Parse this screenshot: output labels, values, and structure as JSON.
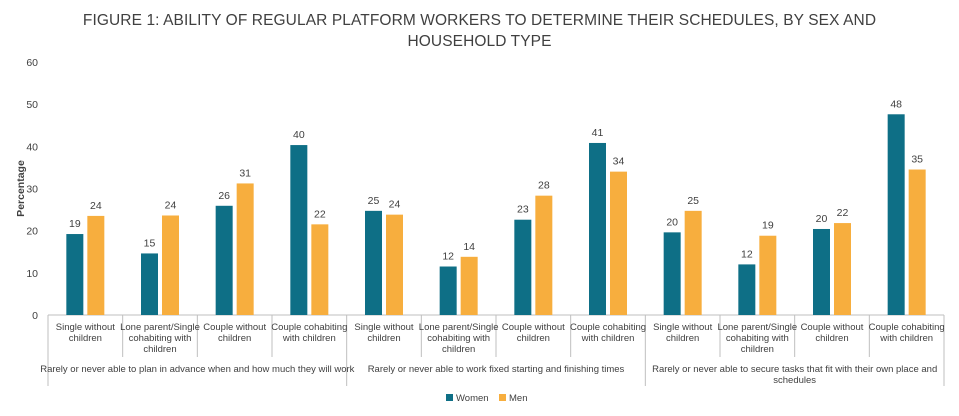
{
  "chart_data": {
    "type": "bar",
    "title_lines": [
      "FIGURE 1: ABILITY OF REGULAR PLATFORM WORKERS TO DETERMINE THEIR SCHEDULES, BY SEX AND",
      "HOUSEHOLD TYPE"
    ],
    "ylabel": "Percentage",
    "ylim": [
      0,
      60
    ],
    "yticks": [
      0,
      10,
      20,
      30,
      40,
      50,
      60
    ],
    "grid": false,
    "legend_position": "bottom",
    "groups": [
      {
        "label": "Rarely or never able to plan in advance when and how much they will work",
        "categories": [
          [
            "Single without",
            "children"
          ],
          [
            "Lone parent/Single",
            "cohabiting with",
            "children"
          ],
          [
            "Couple without",
            "children"
          ],
          [
            "Couple cohabiting",
            "with children"
          ]
        ]
      },
      {
        "label": "Rarely or never able to work fixed starting and finishing times",
        "categories": [
          [
            "Single without",
            "children"
          ],
          [
            "Lone parent/Single",
            "cohabiting with",
            "children"
          ],
          [
            "Couple without",
            "children"
          ],
          [
            "Couple cohabiting",
            "with children"
          ]
        ]
      },
      {
        "label": [
          "Rarely or never able to secure tasks that fit with their own place and",
          "schedules"
        ],
        "categories": [
          [
            "Single without",
            "children"
          ],
          [
            "Lone parent/Single",
            "cohabiting with",
            "children"
          ],
          [
            "Couple without",
            "children"
          ],
          [
            "Couple cohabiting",
            "with children"
          ]
        ]
      }
    ],
    "series": [
      {
        "name": "Women",
        "color": "#0e6f86",
        "values": [
          19,
          15,
          26,
          40,
          25,
          12,
          23,
          41,
          20,
          12,
          20,
          48
        ],
        "exact": [
          19.2,
          14.6,
          25.9,
          40.3,
          24.7,
          11.5,
          22.6,
          40.8,
          19.6,
          12.0,
          20.4,
          47.6
        ]
      },
      {
        "name": "Men",
        "color": "#f7ae3e",
        "values": [
          24,
          24,
          31,
          22,
          24,
          14,
          28,
          34,
          25,
          19,
          22,
          35
        ],
        "exact": [
          23.5,
          23.6,
          31.2,
          21.5,
          23.8,
          13.8,
          28.3,
          34.0,
          24.7,
          18.8,
          21.8,
          34.5
        ]
      }
    ]
  }
}
